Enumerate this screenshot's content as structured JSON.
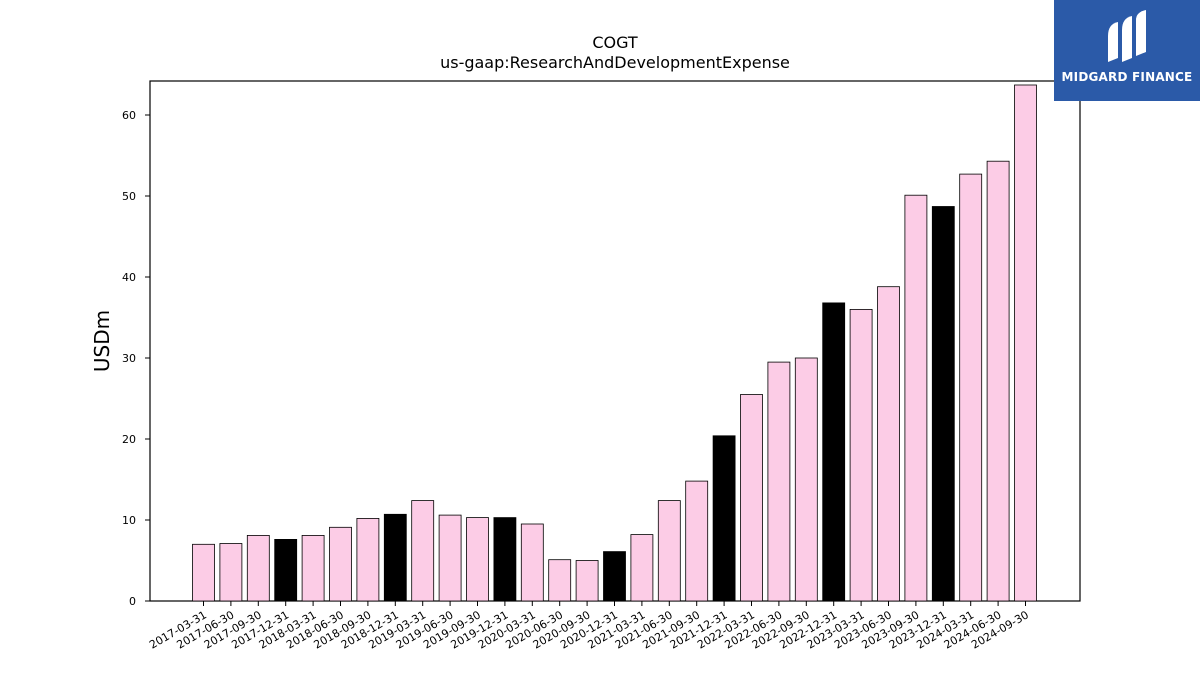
{
  "header": {
    "logo_text": "MIDGARD FINANCE",
    "logo_icon": "midgard-logo-icon",
    "logo_color": "#2b5aa8"
  },
  "chart_data": {
    "type": "bar",
    "title": "COGT",
    "subtitle": "us-gaap:ResearchAndDevelopmentExpense",
    "xlabel": "",
    "ylabel": "USDm",
    "ylim": [
      0,
      64
    ],
    "yticks": [
      0,
      10,
      20,
      30,
      40,
      50,
      60
    ],
    "grid": false,
    "colors": {
      "quarter": "#fccce6",
      "year_end": "#000000",
      "edge": "#000000"
    },
    "categories": [
      "2017-03-31",
      "2017-06-30",
      "2017-09-30",
      "2017-12-31",
      "2018-03-31",
      "2018-06-30",
      "2018-09-30",
      "2018-12-31",
      "2019-03-31",
      "2019-06-30",
      "2019-09-30",
      "2019-12-31",
      "2020-03-31",
      "2020-06-30",
      "2020-09-30",
      "2020-12-31",
      "2021-03-31",
      "2021-06-30",
      "2021-09-30",
      "2021-12-31",
      "2022-03-31",
      "2022-06-30",
      "2022-09-30",
      "2022-12-31",
      "2023-03-31",
      "2023-06-30",
      "2023-09-30",
      "2023-12-31",
      "2024-03-31",
      "2024-06-30",
      "2024-09-30"
    ],
    "values": [
      7.0,
      7.1,
      8.1,
      7.6,
      8.1,
      9.1,
      10.2,
      10.7,
      12.4,
      10.6,
      10.3,
      10.3,
      9.5,
      5.1,
      5.0,
      6.1,
      8.2,
      12.4,
      14.8,
      20.4,
      25.5,
      29.5,
      30.0,
      36.8,
      36.0,
      38.8,
      50.1,
      48.7,
      52.7,
      54.3,
      63.7
    ]
  }
}
